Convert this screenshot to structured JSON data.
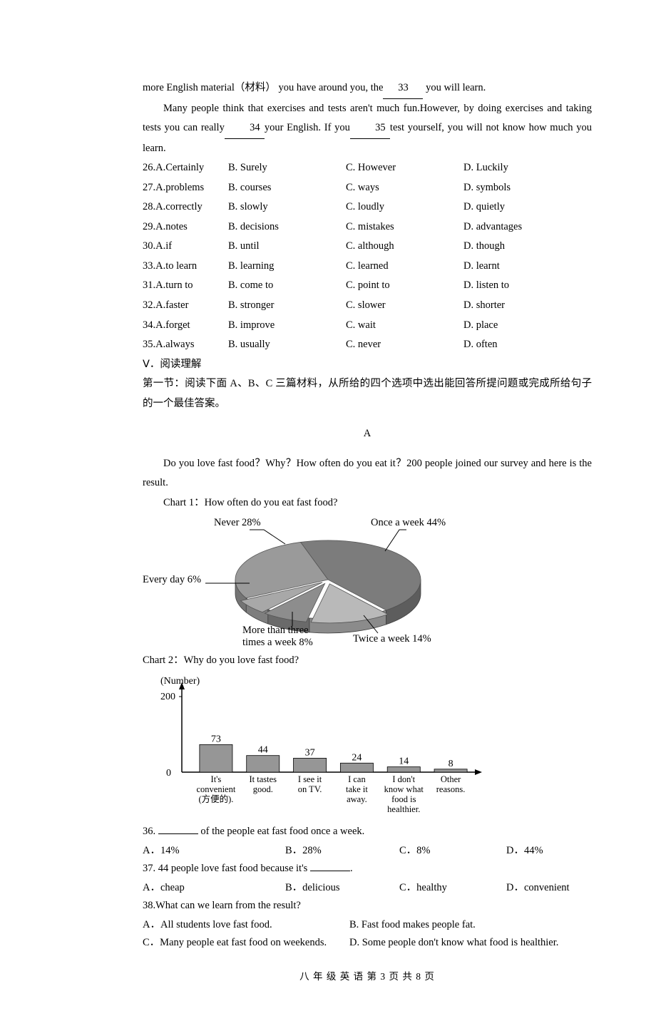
{
  "para1_pre": "more English material（材料）  you have around you, the",
  "blank33": "33",
  "para1_post": " you will learn.",
  "para2_a": "Many people think that exercises and tests aren't much fun.However, by doing exercises and taking tests you can really",
  "blank34": "34",
  "para2_b": "your English. If you",
  "blank35": "35",
  "para2_c": "test yourself, you will not know how much you learn.",
  "mc": [
    {
      "n": "26.A.Certainly",
      "b": "B. Surely",
      "c": "C. However",
      "d": "D. Luckily"
    },
    {
      "n": "27.A.problems",
      "b": "B. courses",
      "c": "C. ways",
      "d": "D. symbols"
    },
    {
      "n": "28.A.correctly",
      "b": "B. slowly",
      "c": "C. loudly",
      "d": "D. quietly"
    },
    {
      "n": "29.A.notes",
      "b": "B. decisions",
      "c": "C. mistakes",
      "d": "D. advantages"
    },
    {
      "n": "30.A.if",
      "b": "B. until",
      "c": "C. although",
      "d": "D. though"
    },
    {
      "n": "33.A.to learn",
      "b": "B. learning",
      "c": "C. learned",
      "d": "D. learnt"
    },
    {
      "n": "31.A.turn to",
      "b": "B. come to",
      "c": "C. point to",
      "d": "D. listen to"
    },
    {
      "n": "32.A.faster",
      "b": "B. stronger",
      "c": "C. slower",
      "d": "D. shorter"
    },
    {
      "n": "34.A.forget",
      "b": "B. improve",
      "c": "C. wait",
      "d": "D. place"
    },
    {
      "n": "35.A.always",
      "b": "B. usually",
      "c": "C. never",
      "d": "D. often"
    }
  ],
  "sec5_title": "Ⅴ．阅读理解",
  "sec5_desc": "第一节：阅读下面 A、B、C 三篇材料，从所给的四个选项中选出能回答所提问题或完成所给句子的一个最佳答案。",
  "passage_letter": "A",
  "passage_text": "Do you love fast food？Why？How often do you eat it？200 people joined our survey and here is the result.",
  "chart1_caption": "Chart 1：How often do you eat fast food?",
  "pie": {
    "type": "pie",
    "slices": [
      {
        "label": "Once a week 44%",
        "value": 44,
        "color": "#7c7c7c"
      },
      {
        "label": "Twice a week 14%",
        "value": 14,
        "color": "#b9b9b9"
      },
      {
        "label": "More than three\ntimes a week 8%",
        "value": 8,
        "color": "#8d8d8d"
      },
      {
        "label": "Every day 6%",
        "value": 6,
        "color": "#a8a8a8"
      },
      {
        "label": "Never 28%",
        "value": 28,
        "color": "#9a9a9a"
      }
    ],
    "outline_color": "#555555",
    "background_color": "#ffffff",
    "label_fontsize": 14.5
  },
  "pie_labels": {
    "never": "Never 28%",
    "once": "Once a week 44%",
    "everyday": "Every day 6%",
    "more3a": "More than three",
    "more3b": "times a week 8%",
    "twice": "Twice a week 14%"
  },
  "chart2_caption": "Chart 2：Why do you love fast food?",
  "bar": {
    "type": "bar",
    "y_axis_label": "(Number)",
    "y_axis_fontsize": 14,
    "ylim": [
      0,
      200
    ],
    "yticks": [
      0,
      200
    ],
    "bar_color": "#969696",
    "outline_color": "#000000",
    "background_color": "#ffffff",
    "bar_width": 0.7,
    "value_fontsize": 14,
    "cat_fontsize": 12.5,
    "categories": [
      "It's\nconvenient\n(方便的).",
      "It tastes\ngood.",
      "I see it\non TV.",
      "I can\ntake it\naway.",
      "I don't\nknow what\nfood is\nhealthier.",
      "Other\nreasons."
    ],
    "values": [
      73,
      44,
      37,
      24,
      14,
      8
    ]
  },
  "q36": "36. ________ of the people eat fast food once a week.",
  "q36opts": {
    "a": "A．14%",
    "b": "B．28%",
    "c": "C．8%",
    "d": "D．44%"
  },
  "q37": "37. 44 people love fast food because it's ________.",
  "q37opts": {
    "a": "A．cheap",
    "b": "B．delicious",
    "c": "C．healthy",
    "d": "D．convenient"
  },
  "q38": "38.What can we learn from the result?",
  "q38a": "A．All students love fast food.",
  "q38b": "B. Fast food makes people fat.",
  "q38c": "C．Many people eat fast food on weekends.",
  "q38d": "D. Some people don't know what food is healthier.",
  "footer": "八 年 级  英 语   第 3 页  共 8 页"
}
